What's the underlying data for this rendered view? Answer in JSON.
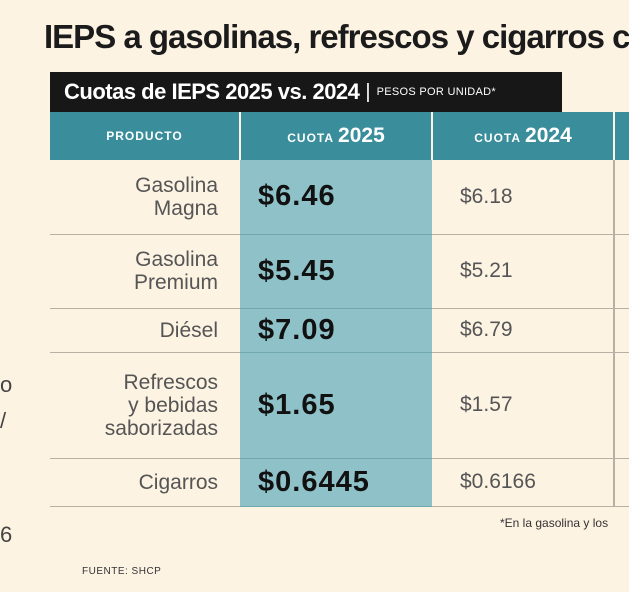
{
  "title": "IEPS a gasolinas, refrescos y cigarros c",
  "subtitle": {
    "main": "Cuotas de IEPS 2025 vs. 2024",
    "separator": "|",
    "unit": "PESOS POR UNIDAD*"
  },
  "left_fragments": [
    "o",
    "/",
    "6"
  ],
  "colors": {
    "header_bg": "#3a8d9b",
    "highlight_col": "#8ec2c8",
    "background": "#fdf3e3",
    "subtitle_bg": "#171717"
  },
  "chart_data": {
    "type": "table",
    "columns": [
      {
        "label": "PRODUCTO",
        "year": ""
      },
      {
        "label": "CUOTA",
        "year": "2025"
      },
      {
        "label": "CUOTA",
        "year": "2024"
      }
    ],
    "rows": [
      {
        "product": [
          "Gasolina",
          "Magna"
        ],
        "cuota_2025": "$6.46",
        "cuota_2024": "$6.18"
      },
      {
        "product": [
          "Gasolina",
          "Premium"
        ],
        "cuota_2025": "$5.45",
        "cuota_2024": "$5.21"
      },
      {
        "product": [
          "Diésel"
        ],
        "cuota_2025": "$7.09",
        "cuota_2024": "$6.79"
      },
      {
        "product": [
          "Refrescos",
          "y bebidas",
          "saborizadas"
        ],
        "cuota_2025": "$1.65",
        "cuota_2024": "$1.57"
      },
      {
        "product": [
          "Cigarros"
        ],
        "cuota_2025": "$0.6445",
        "cuota_2024": "$0.6166"
      }
    ],
    "values_2025": [
      6.46,
      5.45,
      7.09,
      1.65,
      0.6445
    ],
    "values_2024": [
      6.18,
      5.21,
      6.79,
      1.57,
      0.6166
    ]
  },
  "footnote": "*En la gasolina y los",
  "source": "FUENTE: SHCP"
}
